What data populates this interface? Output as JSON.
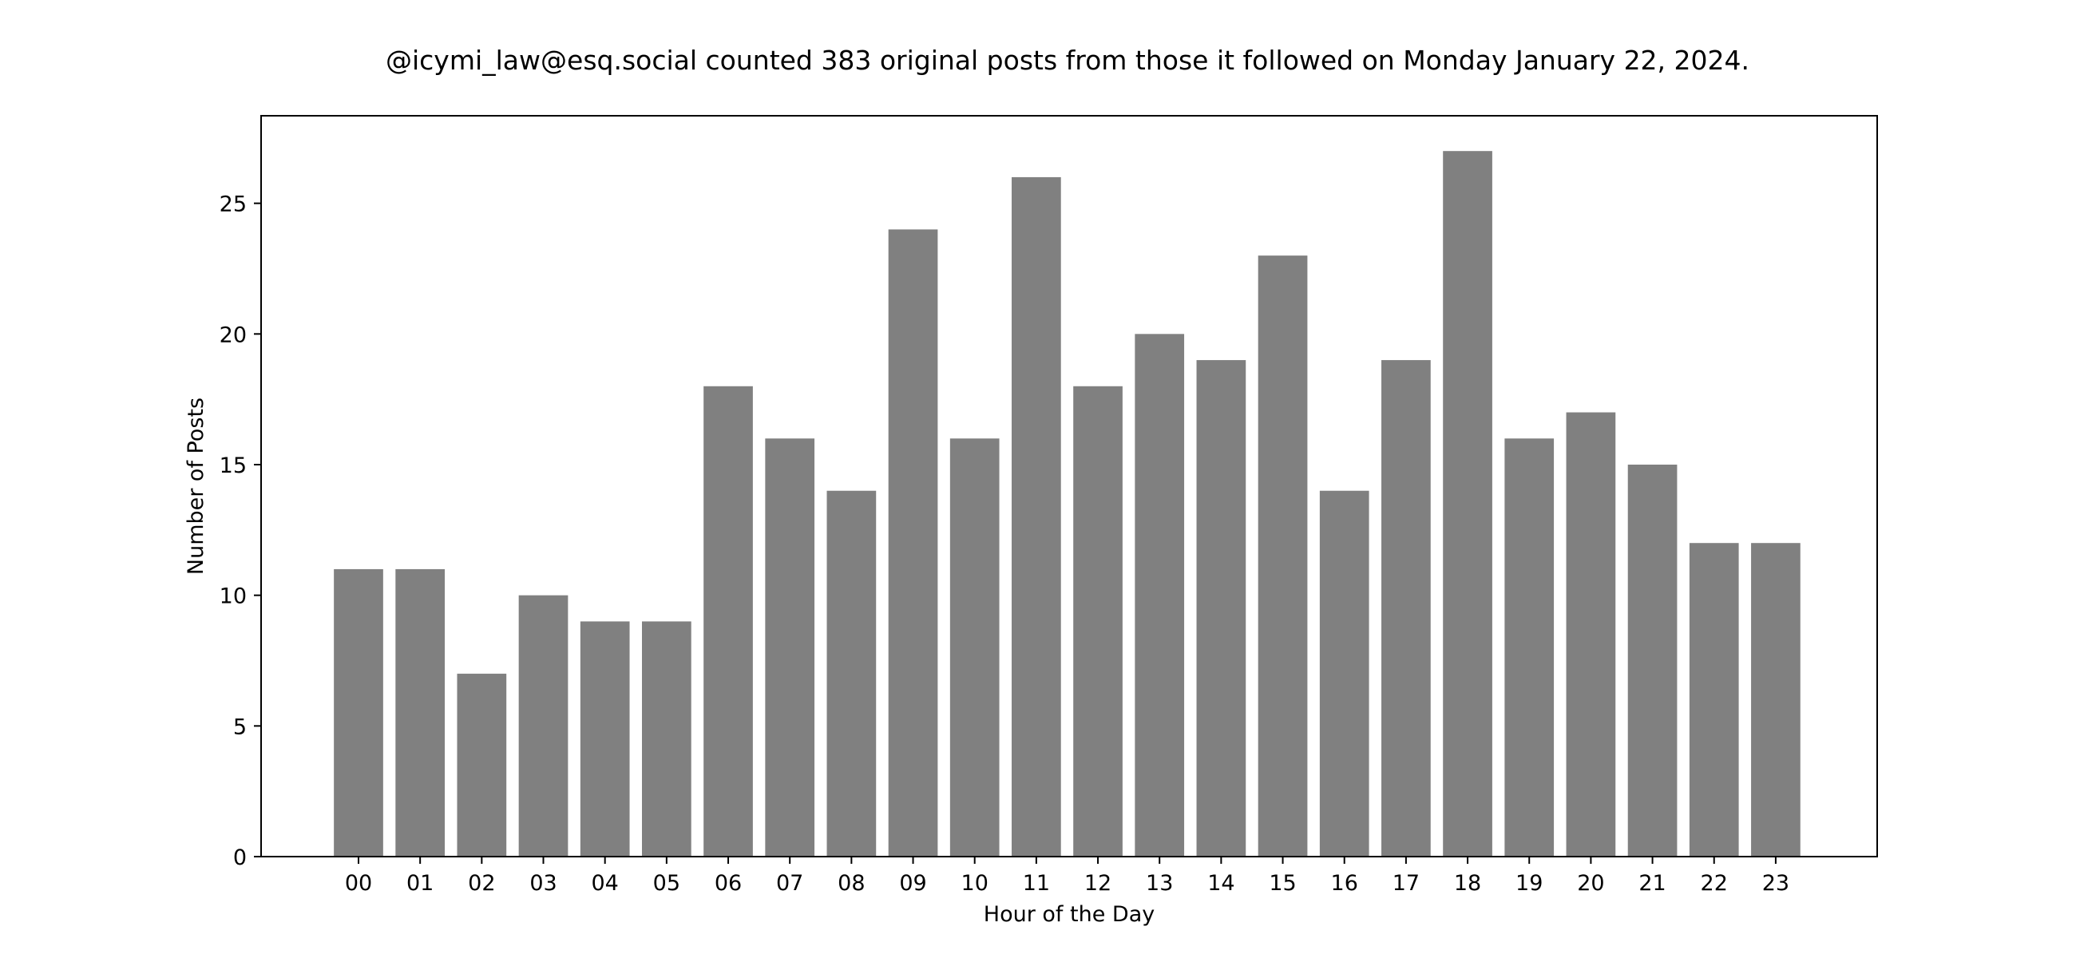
{
  "chart_data": {
    "type": "bar",
    "title": "@icymi_law@esq.social counted 383 original posts from those it followed on Monday January 22, 2024.",
    "xlabel": "Hour of the Day",
    "ylabel": "Number of Posts",
    "categories": [
      "00",
      "01",
      "02",
      "03",
      "04",
      "05",
      "06",
      "07",
      "08",
      "09",
      "10",
      "11",
      "12",
      "13",
      "14",
      "15",
      "16",
      "17",
      "18",
      "19",
      "20",
      "21",
      "22",
      "23"
    ],
    "values": [
      11,
      11,
      7,
      10,
      9,
      9,
      18,
      16,
      14,
      24,
      16,
      26,
      18,
      20,
      19,
      23,
      14,
      19,
      27,
      16,
      17,
      15,
      12,
      12
    ],
    "ylim": [
      0,
      28.35
    ],
    "yticks": [
      0,
      5,
      10,
      15,
      20,
      25
    ],
    "grid": false,
    "legend": "none",
    "bar_color": "#808080",
    "axis_color": "#000000"
  }
}
